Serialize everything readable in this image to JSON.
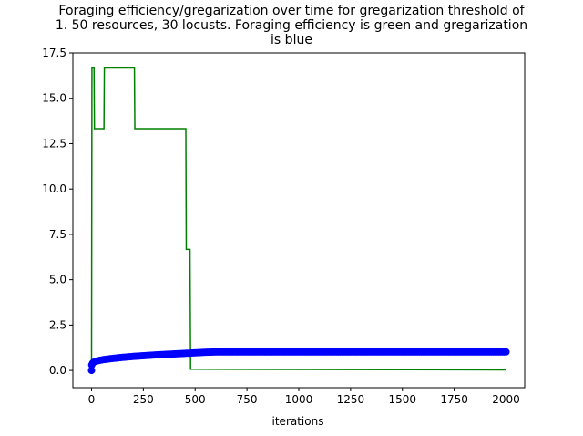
{
  "chart_data": {
    "type": "line",
    "title_lines": [
      "Foraging efficiency/gregarization over time for gregarization threshold of",
      "1. 50 resources, 30 locusts. Foraging efficiency is green and gregarization",
      "is blue"
    ],
    "xlabel": "iterations",
    "ylabel": "",
    "xlim": [
      -90,
      2090
    ],
    "ylim": [
      -0.95,
      17.5
    ],
    "x_ticks": [
      0,
      250,
      500,
      750,
      1000,
      1250,
      1500,
      1750,
      2000
    ],
    "x_tick_labels": [
      "0",
      "250",
      "500",
      "750",
      "1000",
      "1250",
      "1500",
      "1750",
      "2000"
    ],
    "y_ticks": [
      0.0,
      2.5,
      5.0,
      7.5,
      10.0,
      12.5,
      15.0,
      17.5
    ],
    "y_tick_labels": [
      "0.0",
      "2.5",
      "5.0",
      "7.5",
      "10.0",
      "12.5",
      "15.0",
      "17.5"
    ],
    "grid": false,
    "series": [
      {
        "color": "#008000",
        "style": "step-line",
        "points": [
          [
            0,
            0.0
          ],
          [
            2,
            16.67
          ],
          [
            12,
            16.67
          ],
          [
            14,
            13.33
          ],
          [
            60,
            13.33
          ],
          [
            62,
            16.67
          ],
          [
            207,
            16.67
          ],
          [
            209,
            13.33
          ],
          [
            455,
            13.33
          ],
          [
            457,
            6.67
          ],
          [
            475,
            6.67
          ],
          [
            478,
            0.07
          ],
          [
            2000,
            0.03
          ]
        ]
      },
      {
        "color": "#0000ff",
        "style": "markers-line",
        "points": [
          [
            0,
            0.0
          ],
          [
            1,
            0.3
          ],
          [
            5,
            0.4
          ],
          [
            10,
            0.45
          ],
          [
            20,
            0.5
          ],
          [
            40,
            0.56
          ],
          [
            60,
            0.6
          ],
          [
            80,
            0.63
          ],
          [
            100,
            0.66
          ],
          [
            150,
            0.72
          ],
          [
            200,
            0.77
          ],
          [
            250,
            0.81
          ],
          [
            300,
            0.85
          ],
          [
            350,
            0.88
          ],
          [
            400,
            0.91
          ],
          [
            450,
            0.94
          ],
          [
            500,
            0.97
          ],
          [
            550,
            1.0
          ],
          [
            600,
            1.02
          ],
          [
            700,
            1.02
          ],
          [
            800,
            1.02
          ],
          [
            1000,
            1.02
          ],
          [
            1200,
            1.02
          ],
          [
            1400,
            1.02
          ],
          [
            1600,
            1.02
          ],
          [
            1800,
            1.02
          ],
          [
            2000,
            1.02
          ]
        ]
      }
    ]
  }
}
